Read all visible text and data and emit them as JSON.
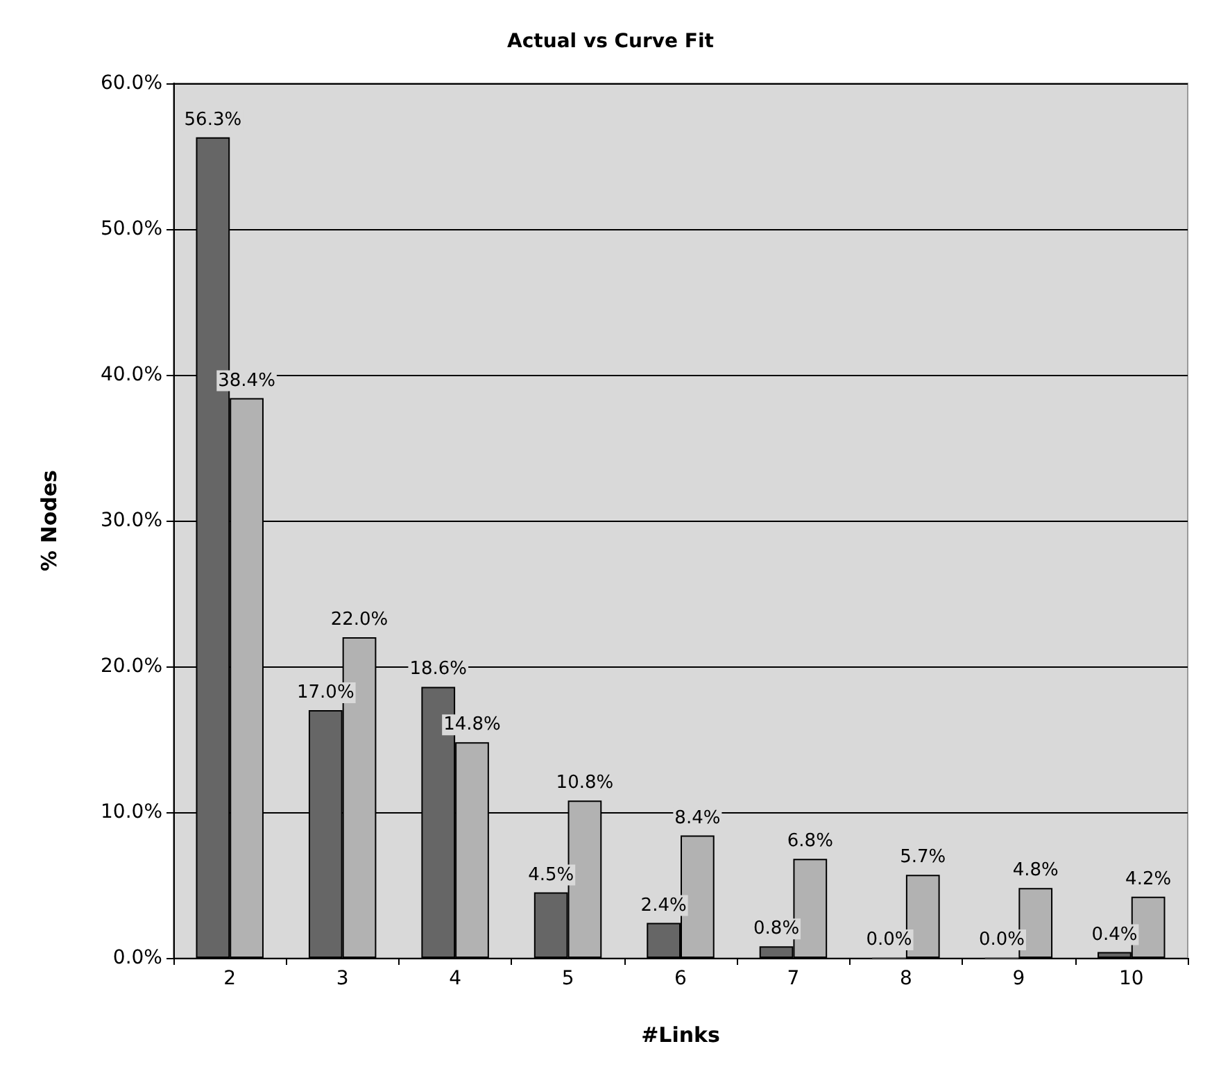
{
  "chart_data": {
    "type": "bar",
    "title": "Actual vs Curve Fit",
    "xlabel": "#Links",
    "ylabel": "% Nodes",
    "categories": [
      "2",
      "3",
      "4",
      "5",
      "6",
      "7",
      "8",
      "9",
      "10"
    ],
    "series": [
      {
        "color": "#666666",
        "values": [
          56.3,
          17.0,
          18.6,
          4.5,
          2.4,
          0.8,
          0.0,
          0.0,
          0.4
        ],
        "value_labels": [
          "56.3%",
          "17.0%",
          "18.6%",
          "4.5%",
          "2.4%",
          "0.8%",
          "0.0%",
          "0.0%",
          "0.4%"
        ]
      },
      {
        "color": "#b2b2b2",
        "values": [
          38.4,
          22.0,
          14.8,
          10.8,
          8.4,
          6.8,
          5.7,
          4.8,
          4.2
        ],
        "value_labels": [
          "38.4%",
          "22.0%",
          "14.8%",
          "10.8%",
          "8.4%",
          "6.8%",
          "5.7%",
          "4.8%",
          "4.2%"
        ]
      }
    ],
    "ylim": [
      0,
      60
    ],
    "yticks": [
      {
        "value": 0,
        "label": "0.0%"
      },
      {
        "value": 10,
        "label": "10.0%"
      },
      {
        "value": 20,
        "label": "20.0%"
      },
      {
        "value": 30,
        "label": "30.0%"
      },
      {
        "value": 40,
        "label": "40.0%"
      },
      {
        "value": 50,
        "label": "50.0%"
      },
      {
        "value": 60,
        "label": "60.0%"
      }
    ],
    "grid": "y"
  }
}
